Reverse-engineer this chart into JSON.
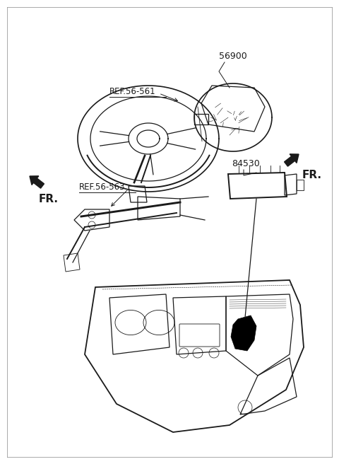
{
  "background_color": "#ffffff",
  "line_color": "#1a1a1a",
  "labels": {
    "ref_56_561": "REF.56-561",
    "ref_56_563": "REF.56-563",
    "part_56900": "56900",
    "part_84530": "84530",
    "fr_left": "FR.",
    "fr_right": "FR."
  },
  "figsize": [
    4.8,
    6.56
  ],
  "dpi": 100
}
